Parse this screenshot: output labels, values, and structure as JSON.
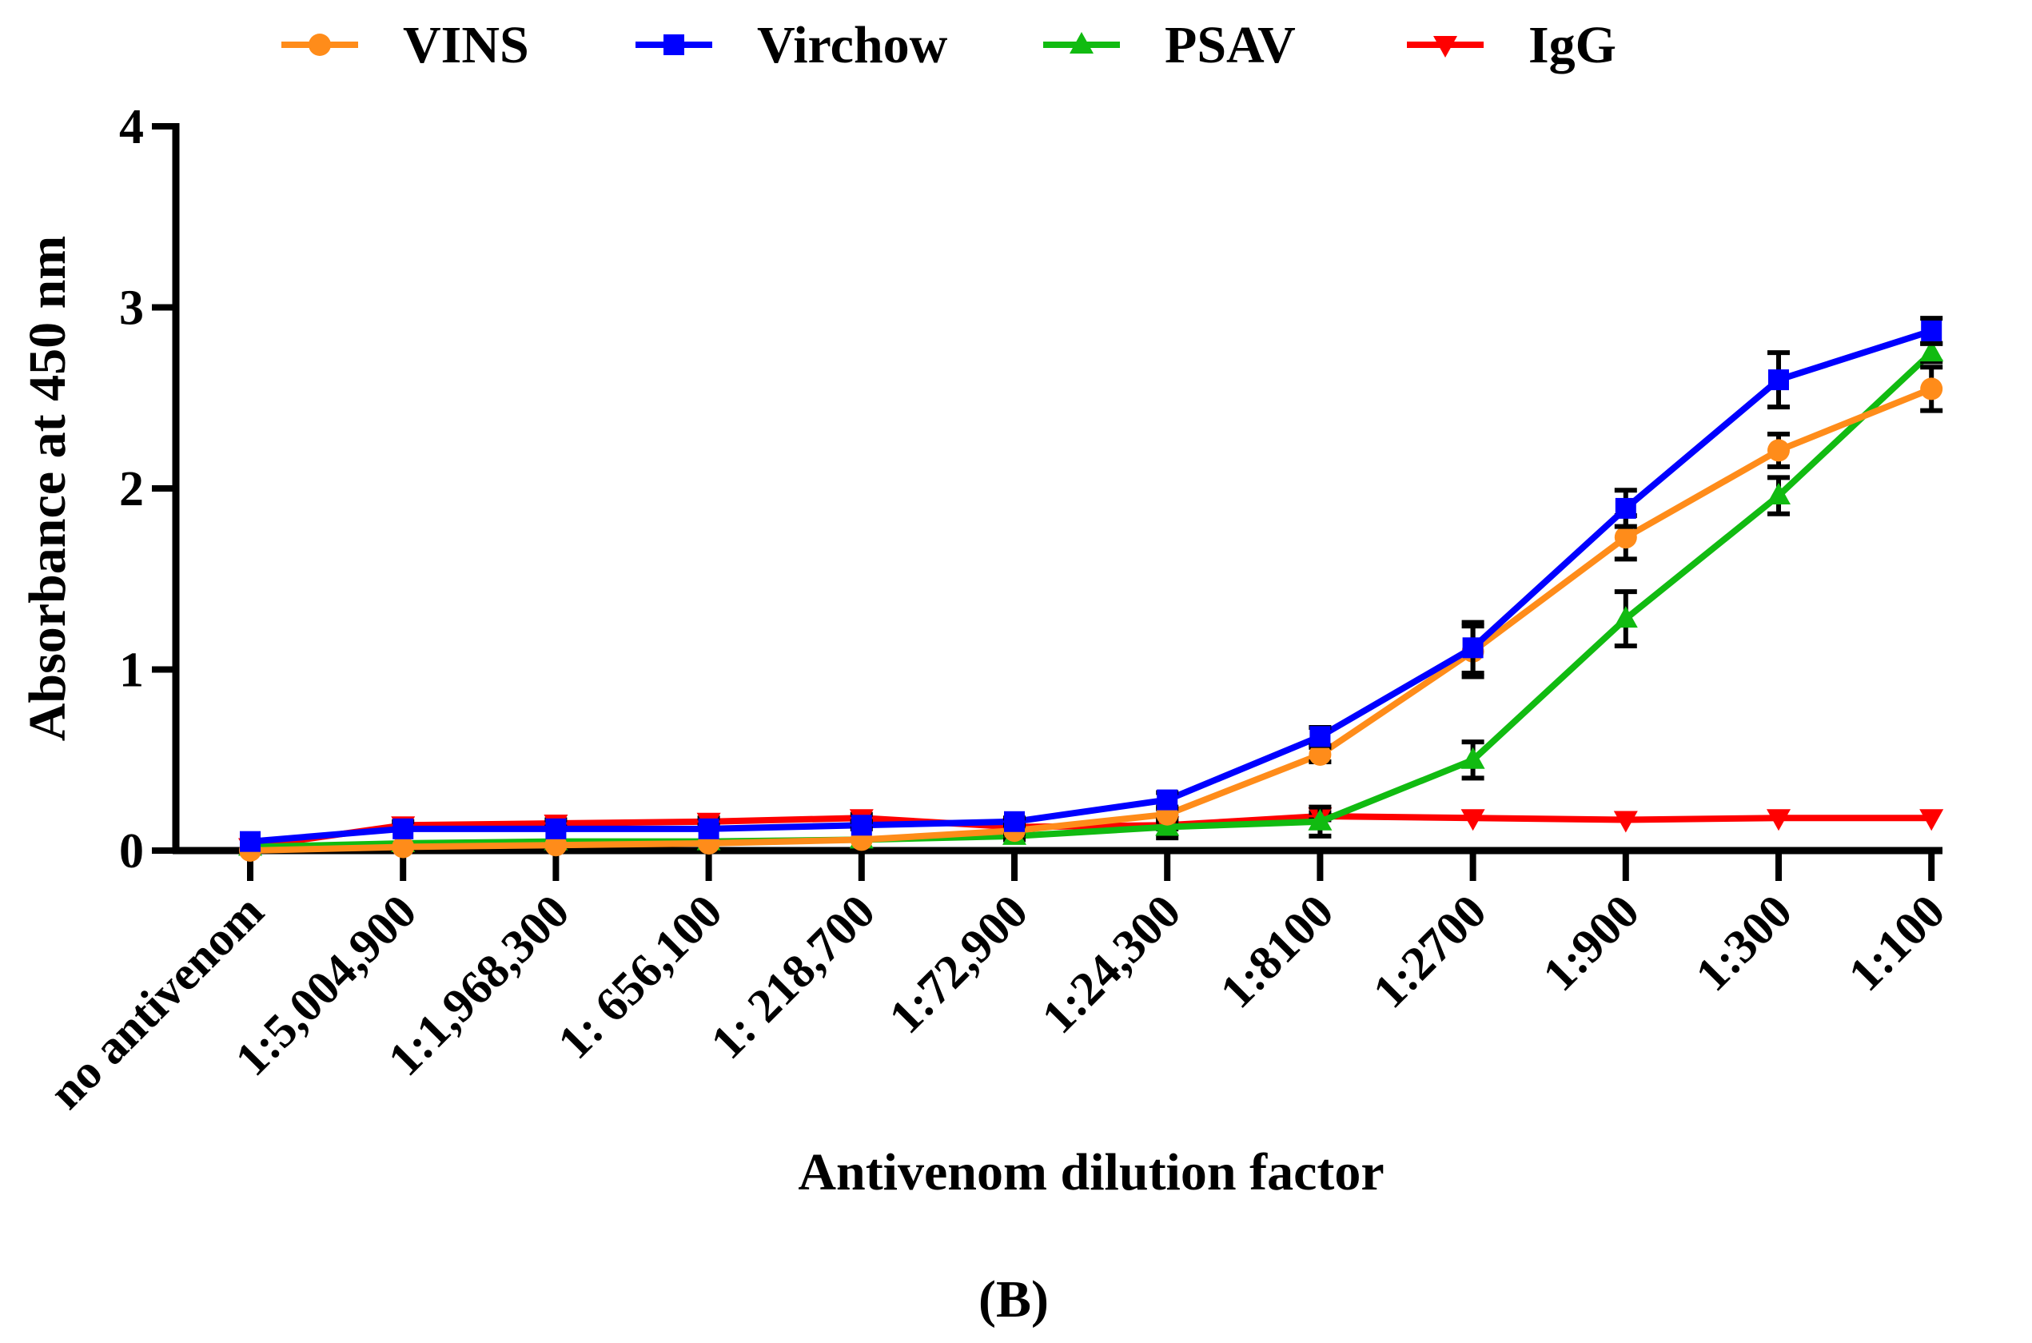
{
  "chart_data": {
    "type": "line",
    "categories": [
      "no antivenom",
      "1:5,004,900",
      "1:1,968,300",
      "1: 656,100",
      "1: 218,700",
      "1:72,900",
      "1:24,300",
      "1:8100",
      "1:2700",
      "1:900",
      "1:300",
      "1:100"
    ],
    "xlabel": "Antivenom dilution factor",
    "ylabel": "Absorbance at 450 nm",
    "ylim": [
      0,
      4
    ],
    "yticks": [
      "0",
      "1",
      "2",
      "3",
      "4"
    ],
    "grid": false,
    "legend_position": "top",
    "panel_label": "(B)",
    "series": [
      {
        "name": "VINS",
        "color": "#ff8c1a",
        "marker": "circle",
        "values": [
          0.0,
          0.02,
          0.03,
          0.04,
          0.06,
          0.11,
          0.2,
          0.53,
          1.1,
          1.73,
          2.21,
          2.55
        ],
        "errors": [
          0.01,
          0.01,
          0.01,
          0.01,
          0.01,
          0.02,
          0.03,
          0.04,
          0.14,
          0.12,
          0.09,
          0.12
        ]
      },
      {
        "name": "Virchow",
        "color": "#0000ff",
        "marker": "square",
        "values": [
          0.05,
          0.12,
          0.12,
          0.12,
          0.14,
          0.16,
          0.28,
          0.63,
          1.12,
          1.89,
          2.6,
          2.87
        ],
        "errors": [
          0.01,
          0.01,
          0.01,
          0.01,
          0.02,
          0.02,
          0.04,
          0.05,
          0.14,
          0.1,
          0.15,
          0.07
        ]
      },
      {
        "name": "PSAV",
        "color": "#11bb11",
        "marker": "triangle-up",
        "values": [
          0.02,
          0.04,
          0.05,
          0.05,
          0.06,
          0.08,
          0.13,
          0.16,
          0.5,
          1.28,
          1.96,
          2.75
        ],
        "errors": [
          0.01,
          0.01,
          0.01,
          0.01,
          0.01,
          0.02,
          0.06,
          0.08,
          0.1,
          0.15,
          0.1,
          0.05
        ]
      },
      {
        "name": "IgG",
        "color": "#ff0000",
        "marker": "triangle-down",
        "values": [
          0.02,
          0.14,
          0.15,
          0.16,
          0.18,
          0.13,
          0.14,
          0.19,
          0.18,
          0.17,
          0.18,
          0.18
        ],
        "errors": [
          0.01,
          0.02,
          0.02,
          0.02,
          0.02,
          0.02,
          0.02,
          0.02,
          0.01,
          0.01,
          0.01,
          0.01
        ]
      }
    ]
  }
}
